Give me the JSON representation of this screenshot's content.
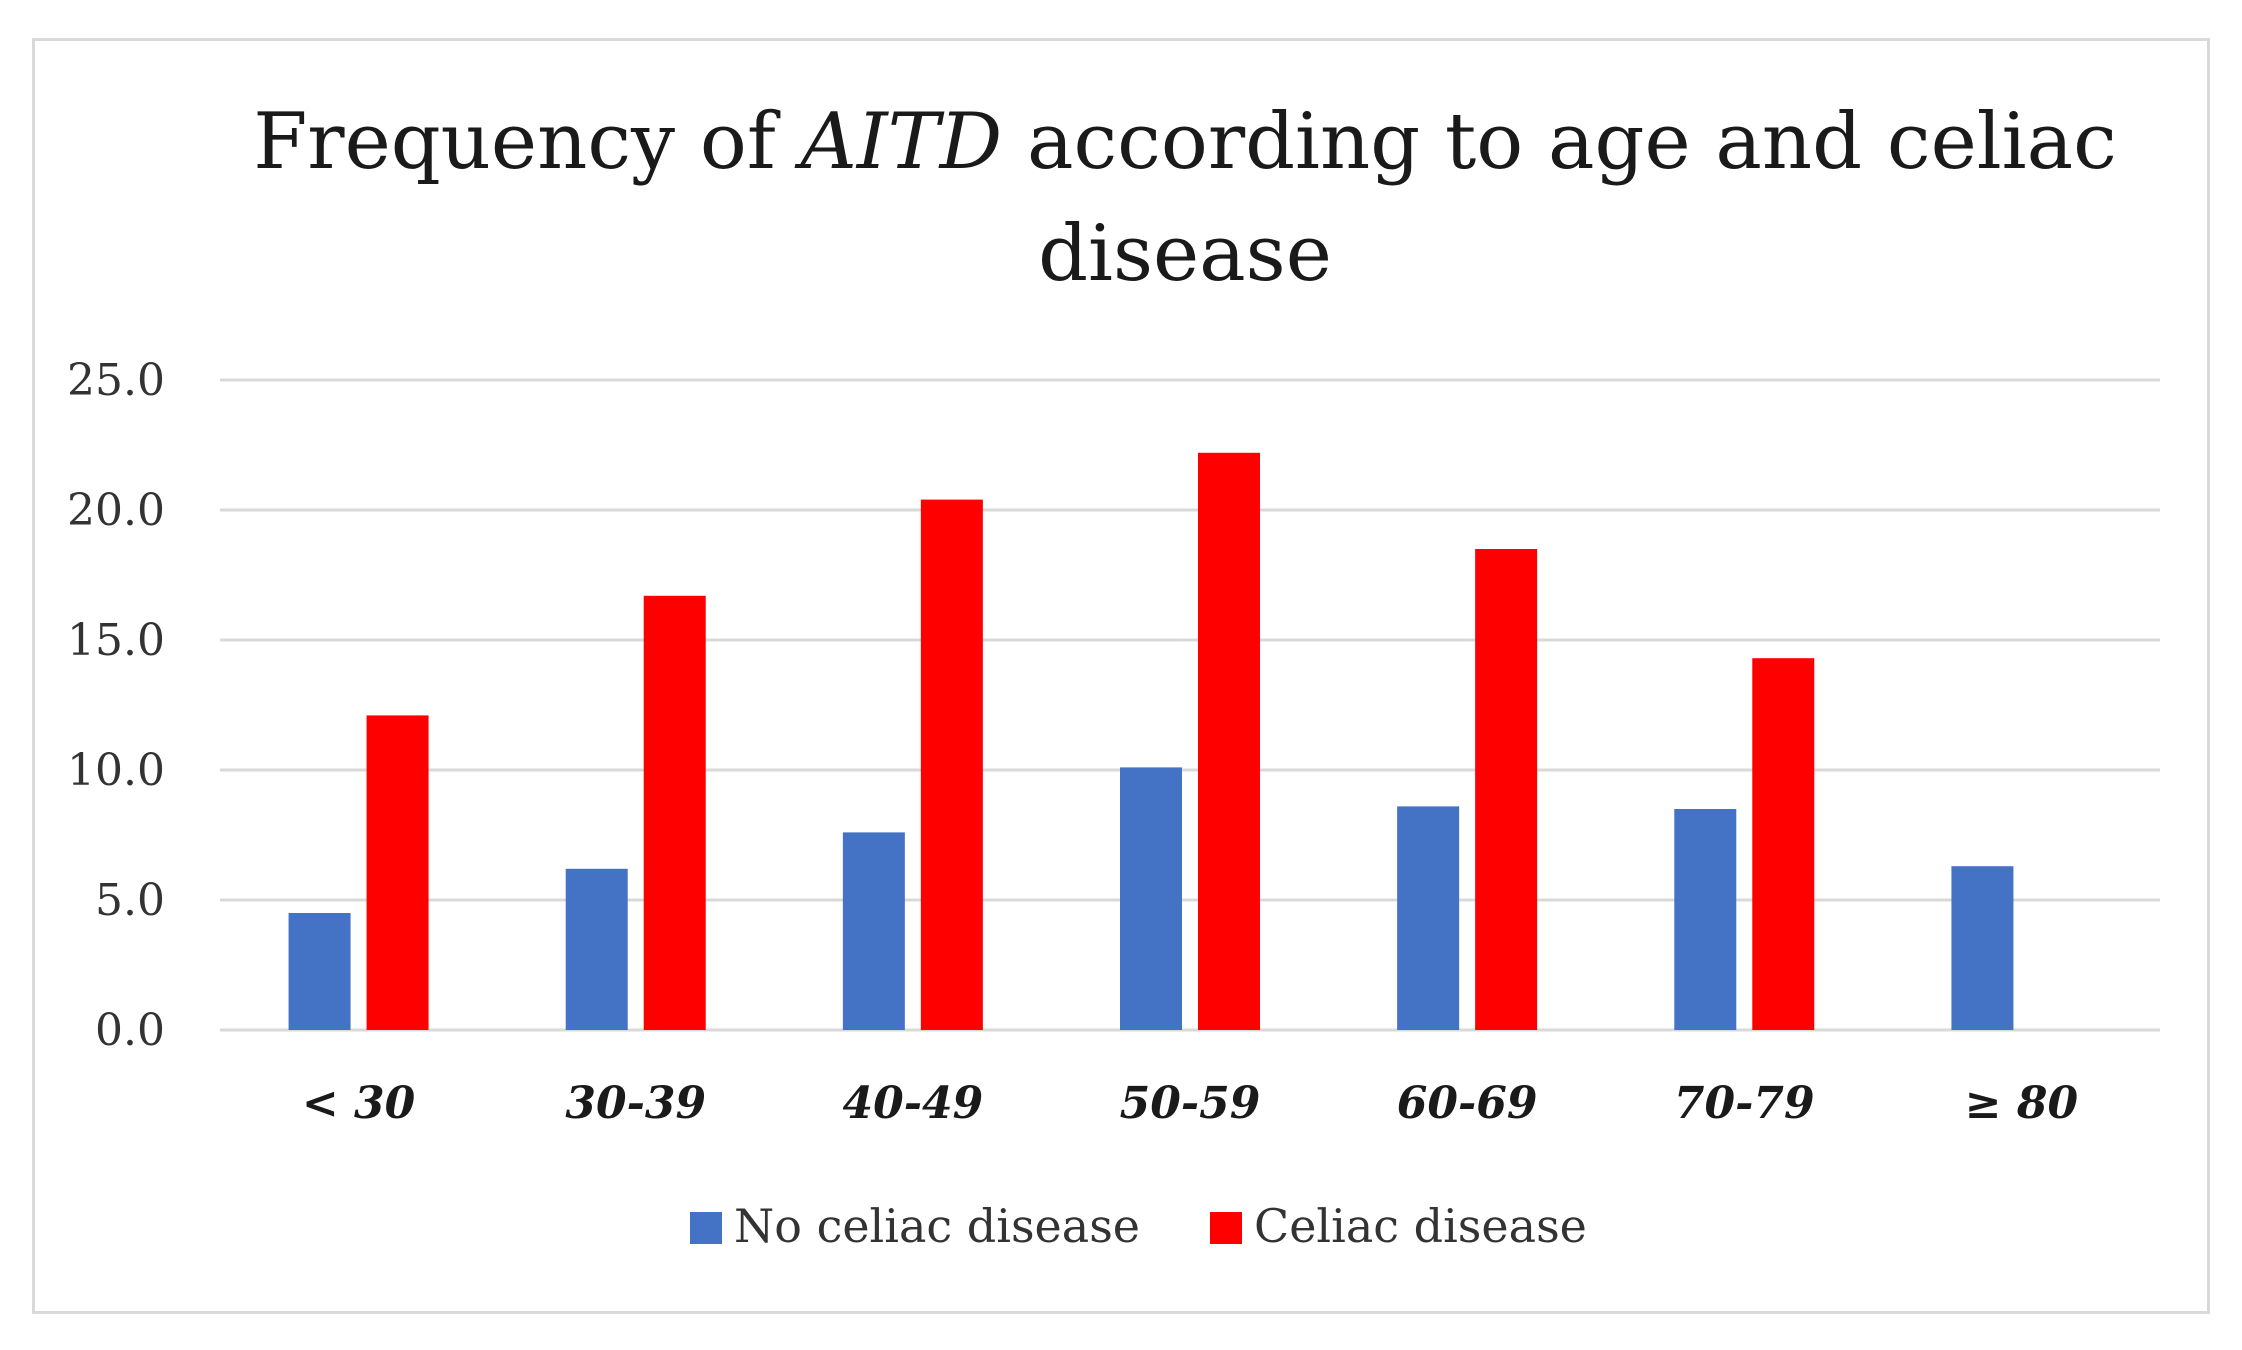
{
  "chart_data": {
    "type": "bar",
    "title": {
      "part1": "Frequency of ",
      "part2_italic": "AITD",
      "part3": " according to age and celiac",
      "line2": "disease"
    },
    "categories": [
      "< 30",
      "30-39",
      "40-49",
      "50-59",
      "60-69",
      "70-79",
      "≥ 80"
    ],
    "series": [
      {
        "name": "No celiac disease",
        "color": "#4472C4",
        "values": [
          4.5,
          6.2,
          7.6,
          10.1,
          8.6,
          8.5,
          6.3
        ]
      },
      {
        "name": "Celiac disease",
        "color": "#FF0000",
        "values": [
          12.1,
          16.7,
          20.4,
          22.2,
          18.5,
          14.3,
          null
        ]
      }
    ],
    "ylim": [
      0,
      25
    ],
    "yticks": [
      "0.0",
      "5.0",
      "10.0",
      "15.0",
      "20.0",
      "25.0"
    ],
    "grid": true,
    "legend_position": "bottom",
    "xlabel": "",
    "ylabel": ""
  }
}
